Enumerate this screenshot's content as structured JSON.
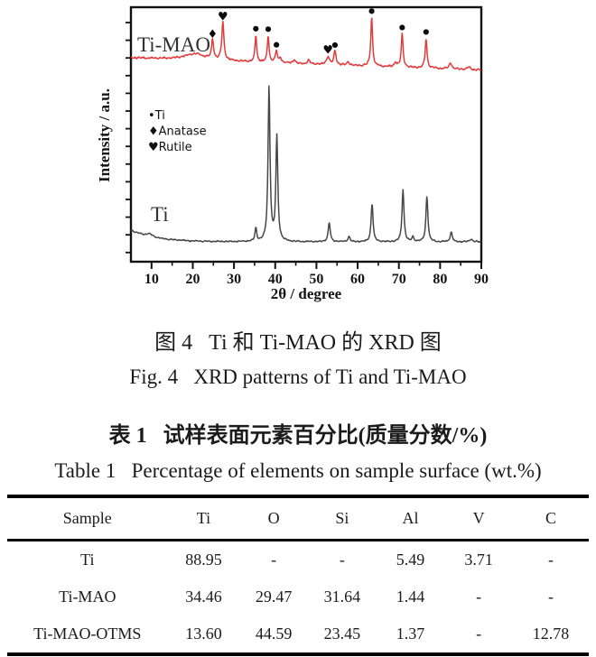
{
  "figure": {
    "caption_zh": "图 4   Ti 和 Ti-MAO 的 XRD 图",
    "caption_en": "Fig. 4   XRD patterns of Ti and Ti-MAO"
  },
  "table_section": {
    "caption_zh": "表 1   试样表面元素百分比(质量分数/%)",
    "caption_en": "Table 1   Percentage of elements on sample surface (wt.%)",
    "columns": [
      "Sample",
      "Ti",
      "O",
      "Si",
      "Al",
      "V",
      "C"
    ],
    "rows": [
      {
        "sample": "Ti",
        "values": [
          "88.95",
          "-",
          "-",
          "5.49",
          "3.71",
          "-"
        ]
      },
      {
        "sample": "Ti-MAO",
        "values": [
          "34.46",
          "29.47",
          "31.64",
          "1.44",
          "-",
          "-"
        ]
      },
      {
        "sample": "Ti-MAO-OTMS",
        "values": [
          "13.60",
          "44.59",
          "23.45",
          "1.37",
          "-",
          "12.78"
        ]
      }
    ]
  },
  "chart_data": {
    "type": "line",
    "title": "",
    "xlabel": "2θ / degree",
    "ylabel": "Intensity / a.u.",
    "xlim": [
      5,
      90
    ],
    "x_ticks": [
      10,
      20,
      30,
      40,
      50,
      60,
      70,
      80,
      90
    ],
    "x_minor_step": 5,
    "grid": false,
    "legend_position": "middle-left",
    "legend": [
      {
        "symbol": "•",
        "label": "Ti"
      },
      {
        "symbol": "♦",
        "label": "Anatase"
      },
      {
        "symbol": "♥",
        "label": "Rutile"
      }
    ],
    "series": [
      {
        "name": "Ti-MAO",
        "color": "#e23b3c",
        "baseline": {
          "start": 64,
          "drift": 0.16,
          "decay_amp": 0,
          "decay_scale": 1
        },
        "noise": 1.0,
        "peaks": [
          {
            "x": 20.5,
            "amp": 7,
            "w": 3.0
          },
          {
            "x": 24.8,
            "amp": 22,
            "w": 0.28
          },
          {
            "x": 27.3,
            "amp": 42,
            "w": 0.3
          },
          {
            "x": 35.3,
            "amp": 30,
            "w": 0.24
          },
          {
            "x": 38.3,
            "amp": 30,
            "w": 0.24
          },
          {
            "x": 40.3,
            "amp": 13,
            "w": 0.3
          },
          {
            "x": 41.3,
            "amp": 5,
            "w": 0.3
          },
          {
            "x": 44.6,
            "amp": 4,
            "w": 0.35
          },
          {
            "x": 48.1,
            "amp": 4,
            "w": 0.35
          },
          {
            "x": 52.8,
            "amp": 9,
            "w": 0.4
          },
          {
            "x": 54.5,
            "amp": 15,
            "w": 0.3
          },
          {
            "x": 57.7,
            "amp": 4,
            "w": 0.35
          },
          {
            "x": 63.4,
            "amp": 54,
            "w": 0.26
          },
          {
            "x": 69.2,
            "amp": 5,
            "w": 0.35
          },
          {
            "x": 70.8,
            "amp": 37,
            "w": 0.26
          },
          {
            "x": 76.6,
            "amp": 33,
            "w": 0.26
          },
          {
            "x": 82.5,
            "amp": 7,
            "w": 0.35
          },
          {
            "x": 87.0,
            "amp": 3,
            "w": 0.4
          }
        ],
        "markers": [
          {
            "symbol": "♦",
            "x": 24.8
          },
          {
            "symbol": "♥",
            "x": 27.3
          },
          {
            "symbol": "•",
            "x": 35.3
          },
          {
            "symbol": "•",
            "x": 38.3
          },
          {
            "symbol": "•",
            "x": 40.3
          },
          {
            "symbol": "♥",
            "x": 52.8
          },
          {
            "symbol": "•",
            "x": 54.5
          },
          {
            "symbol": "•",
            "x": 63.4
          },
          {
            "symbol": "•",
            "x": 70.8
          },
          {
            "symbol": "•",
            "x": 76.6
          }
        ]
      },
      {
        "name": "Ti",
        "color": "#474747",
        "baseline": {
          "start": 268,
          "drift": 0,
          "decay_amp": 13,
          "decay_scale": 6
        },
        "noise": 0.7,
        "peaks": [
          {
            "x": 9.5,
            "amp": 3,
            "w": 0.8
          },
          {
            "x": 35.3,
            "amp": 15,
            "w": 0.25
          },
          {
            "x": 38.5,
            "amp": 171,
            "w": 0.28
          },
          {
            "x": 40.4,
            "amp": 116,
            "w": 0.28
          },
          {
            "x": 53.1,
            "amp": 21,
            "w": 0.3
          },
          {
            "x": 57.9,
            "amp": 6,
            "w": 0.3
          },
          {
            "x": 63.5,
            "amp": 43,
            "w": 0.28
          },
          {
            "x": 71.0,
            "amp": 58,
            "w": 0.28
          },
          {
            "x": 73.4,
            "amp": 5,
            "w": 0.3
          },
          {
            "x": 76.8,
            "amp": 51,
            "w": 0.28
          },
          {
            "x": 82.7,
            "amp": 11,
            "w": 0.3
          },
          {
            "x": 87.5,
            "amp": 3,
            "w": 0.4
          }
        ],
        "markers": []
      }
    ]
  }
}
